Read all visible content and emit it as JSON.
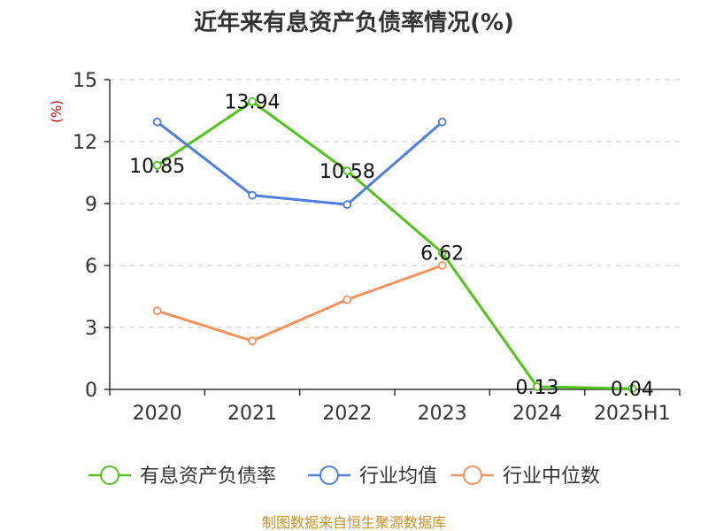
{
  "chart_data": {
    "type": "line",
    "title": "近年来有息资产负债率情况(%)",
    "ylabel": "(%)",
    "categories": [
      "2020",
      "2021",
      "2022",
      "2023",
      "2024",
      "2025H1"
    ],
    "ylim": [
      0,
      15
    ],
    "yticks": [
      "0",
      "3",
      "6",
      "9",
      "12",
      "15"
    ],
    "grid": true,
    "legend_position": "bottom",
    "series": [
      {
        "name": "有息资产负债率",
        "color": "#52c41a",
        "values": [
          10.85,
          13.94,
          10.58,
          6.62,
          0.13,
          0.04
        ],
        "labels": [
          "10.85",
          "13.94",
          "10.58",
          "6.62",
          "0.13",
          "0.04"
        ]
      },
      {
        "name": "行业均值",
        "color": "#4f7fde",
        "values": [
          12.95,
          9.4,
          8.95,
          12.95,
          null,
          null
        ]
      },
      {
        "name": "行业中位数",
        "color": "#f5915c",
        "values": [
          3.8,
          2.35,
          4.35,
          6.0,
          null,
          null
        ]
      }
    ]
  },
  "source": "制图数据来自恒生聚源数据库"
}
